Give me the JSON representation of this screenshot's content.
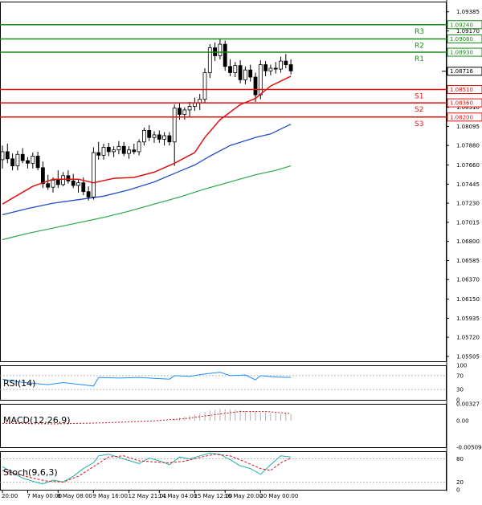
{
  "chart_data": {
    "type": "candlestick",
    "symbol": "EURUSD",
    "timeframe": "H4",
    "main": {
      "ylim": [
        1.0545,
        1.095
      ],
      "price_ticks": [
        "1.09385",
        "1.09170",
        "1.08955",
        "1.08740",
        "1.08525",
        "1.08310",
        "1.08095",
        "1.07880",
        "1.07660",
        "1.07445",
        "1.07230",
        "1.07015",
        "1.06800",
        "1.06585",
        "1.06370",
        "1.06150",
        "1.05935",
        "1.05720",
        "1.05505"
      ],
      "current_price": "1.08716",
      "levels": [
        {
          "name": "R3",
          "value": 1.0924,
          "label": "1.09240",
          "color": "#1a8a1a"
        },
        {
          "name": "R2",
          "value": 1.0908,
          "label": "1.09080",
          "color": "#1a8a1a"
        },
        {
          "name": "R1",
          "value": 1.0893,
          "label": "1.08930",
          "color": "#1a8a1a"
        },
        {
          "name": "S1",
          "value": 1.0851,
          "label": "1.08510",
          "color": "#e01010"
        },
        {
          "name": "S2",
          "value": 1.0836,
          "label": "1.08360",
          "color": "#e01010"
        },
        {
          "name": "S3",
          "value": 1.082,
          "label": "1.08200",
          "color": "#e01010"
        }
      ],
      "candles": [
        [
          1.0772,
          1.0788,
          1.0762,
          1.0781
        ],
        [
          1.0781,
          1.079,
          1.0768,
          1.0773
        ],
        [
          1.0773,
          1.0779,
          1.076,
          1.0765
        ],
        [
          1.0765,
          1.0782,
          1.076,
          1.0778
        ],
        [
          1.0778,
          1.0785,
          1.0768,
          1.0771
        ],
        [
          1.0771,
          1.0775,
          1.0762,
          1.0768
        ],
        [
          1.0768,
          1.078,
          1.0762,
          1.0776
        ],
        [
          1.0776,
          1.0781,
          1.076,
          1.0763
        ],
        [
          1.0763,
          1.077,
          1.074,
          1.0745
        ],
        [
          1.0745,
          1.0755,
          1.0738,
          1.0741
        ],
        [
          1.0741,
          1.0752,
          1.0735,
          1.0749
        ],
        [
          1.0749,
          1.076,
          1.074,
          1.0744
        ],
        [
          1.0744,
          1.0758,
          1.0742,
          1.0754
        ],
        [
          1.0754,
          1.076,
          1.0745,
          1.0748
        ],
        [
          1.0748,
          1.0756,
          1.074,
          1.0743
        ],
        [
          1.0743,
          1.075,
          1.0735,
          1.0746
        ],
        [
          1.0746,
          1.0752,
          1.0732,
          1.0736
        ],
        [
          1.0736,
          1.0742,
          1.0726,
          1.073
        ],
        [
          1.073,
          1.0786,
          1.0727,
          1.078
        ],
        [
          1.078,
          1.0792,
          1.0772,
          1.0777
        ],
        [
          1.0777,
          1.079,
          1.0772,
          1.0786
        ],
        [
          1.0786,
          1.0791,
          1.0776,
          1.0781
        ],
        [
          1.0781,
          1.0787,
          1.0775,
          1.0783
        ],
        [
          1.0783,
          1.0793,
          1.0778,
          1.0787
        ],
        [
          1.0787,
          1.0792,
          1.0776,
          1.0779
        ],
        [
          1.0779,
          1.0787,
          1.0773,
          1.0783
        ],
        [
          1.0783,
          1.079,
          1.0778,
          1.0781
        ],
        [
          1.0781,
          1.0795,
          1.0777,
          1.0792
        ],
        [
          1.0792,
          1.0808,
          1.0788,
          1.0805
        ],
        [
          1.0805,
          1.0811,
          1.0793,
          1.0797
        ],
        [
          1.0797,
          1.0804,
          1.0791,
          1.08
        ],
        [
          1.08,
          1.0805,
          1.0791,
          1.0795
        ],
        [
          1.0795,
          1.0803,
          1.0788,
          1.0799
        ],
        [
          1.0799,
          1.0803,
          1.0788,
          1.0792
        ],
        [
          1.0792,
          1.0834,
          1.0765,
          1.083
        ],
        [
          1.083,
          1.0836,
          1.0817,
          1.0823
        ],
        [
          1.0823,
          1.0831,
          1.0817,
          1.0828
        ],
        [
          1.0828,
          1.0837,
          1.082,
          1.0832
        ],
        [
          1.0832,
          1.0842,
          1.0827,
          1.0836
        ],
        [
          1.0836,
          1.0846,
          1.0828,
          1.084
        ],
        [
          1.084,
          1.0875,
          1.0836,
          1.087
        ],
        [
          1.087,
          1.0902,
          1.0864,
          1.0898
        ],
        [
          1.0898,
          1.0904,
          1.0883,
          1.0889
        ],
        [
          1.0889,
          1.0908,
          1.0885,
          1.0902
        ],
        [
          1.0902,
          1.0906,
          1.0872,
          1.0877
        ],
        [
          1.0877,
          1.0885,
          1.0866,
          1.087
        ],
        [
          1.087,
          1.0882,
          1.0865,
          1.0878
        ],
        [
          1.0878,
          1.0884,
          1.0858,
          1.0862
        ],
        [
          1.0862,
          1.0877,
          1.0857,
          1.0873
        ],
        [
          1.0873,
          1.0879,
          1.086,
          1.0865
        ],
        [
          1.0865,
          1.087,
          1.0837,
          1.0845
        ],
        [
          1.0845,
          1.0884,
          1.084,
          1.0879
        ],
        [
          1.0879,
          1.0883,
          1.0866,
          1.0872
        ],
        [
          1.0872,
          1.0879,
          1.0867,
          1.0875
        ],
        [
          1.0875,
          1.0882,
          1.0869,
          1.0874
        ],
        [
          1.0874,
          1.0888,
          1.087,
          1.0883
        ],
        [
          1.0883,
          1.0891,
          1.0875,
          1.0879
        ],
        [
          1.0879,
          1.0885,
          1.0868,
          1.0872
        ]
      ],
      "ma_red": [
        [
          0,
          1.0722
        ],
        [
          6,
          1.0742
        ],
        [
          10,
          1.075
        ],
        [
          15,
          1.075
        ],
        [
          18,
          1.0746
        ],
        [
          22,
          1.0751
        ],
        [
          26,
          1.0752
        ],
        [
          30,
          1.0758
        ],
        [
          34,
          1.0768
        ],
        [
          38,
          1.078
        ],
        [
          40,
          1.0797
        ],
        [
          43,
          1.0817
        ],
        [
          47,
          1.0834
        ],
        [
          50,
          1.0841
        ],
        [
          53,
          1.0855
        ],
        [
          57,
          1.0866
        ]
      ],
      "ma_blue": [
        [
          0,
          1.071
        ],
        [
          5,
          1.0717
        ],
        [
          10,
          1.0723
        ],
        [
          15,
          1.0727
        ],
        [
          20,
          1.0731
        ],
        [
          25,
          1.0738
        ],
        [
          30,
          1.0747
        ],
        [
          35,
          1.0759
        ],
        [
          38,
          1.0766
        ],
        [
          41,
          1.0776
        ],
        [
          45,
          1.0788
        ],
        [
          50,
          1.0797
        ],
        [
          53,
          1.0801
        ],
        [
          57,
          1.0812
        ]
      ],
      "ma_green": [
        [
          0,
          1.0682
        ],
        [
          5,
          1.0689
        ],
        [
          10,
          1.0695
        ],
        [
          15,
          1.0701
        ],
        [
          20,
          1.0707
        ],
        [
          25,
          1.0714
        ],
        [
          30,
          1.0722
        ],
        [
          35,
          1.073
        ],
        [
          40,
          1.0739
        ],
        [
          45,
          1.0747
        ],
        [
          50,
          1.0755
        ],
        [
          54,
          1.076
        ],
        [
          57,
          1.0765
        ]
      ]
    },
    "rsi": {
      "label": "RSI(14)",
      "ticks": [
        "100",
        "70",
        "30",
        "0"
      ],
      "ylim": [
        0,
        100
      ],
      "values": [
        [
          0,
          60
        ],
        [
          3,
          52
        ],
        [
          6,
          48
        ],
        [
          9,
          44
        ],
        [
          12,
          50
        ],
        [
          15,
          45
        ],
        [
          18,
          40
        ],
        [
          19,
          65
        ],
        [
          23,
          63
        ],
        [
          27,
          65
        ],
        [
          30,
          62
        ],
        [
          33,
          60
        ],
        [
          34,
          70
        ],
        [
          37,
          68
        ],
        [
          40,
          75
        ],
        [
          43,
          80
        ],
        [
          45,
          70
        ],
        [
          48,
          72
        ],
        [
          50,
          58
        ],
        [
          51,
          70
        ],
        [
          54,
          66
        ],
        [
          57,
          65
        ]
      ]
    },
    "macd": {
      "label": "MACD(12,26,9)",
      "ticks": [
        "0.00327",
        "0.00",
        "-0.005094"
      ],
      "ylim": [
        -0.005094,
        0.00327
      ],
      "histogram_x_start": 34,
      "histogram": [
        0.0004,
        0.0006,
        0.0008,
        0.001,
        0.0012,
        0.0014,
        0.0017,
        0.002,
        0.0021,
        0.0022,
        0.0022,
        0.0022,
        0.0021,
        0.002,
        0.0019,
        0.0018,
        0.0017,
        0.0016,
        0.0016,
        0.0015,
        0.0015,
        0.0014,
        0.0014,
        0.0013
      ],
      "signal": [
        [
          0,
          -0.0005
        ],
        [
          10,
          -0.0006
        ],
        [
          20,
          -0.0004
        ],
        [
          30,
          0.0
        ],
        [
          36,
          0.0004
        ],
        [
          42,
          0.0012
        ],
        [
          47,
          0.0018
        ],
        [
          52,
          0.0018
        ],
        [
          57,
          0.0014
        ]
      ]
    },
    "stoch": {
      "label": "Stoch(9,6,3)",
      "ticks": [
        "80",
        "20",
        "0"
      ],
      "ylim": [
        0,
        100
      ],
      "main": [
        [
          0,
          60
        ],
        [
          2,
          45
        ],
        [
          4,
          30
        ],
        [
          6,
          22
        ],
        [
          8,
          15
        ],
        [
          10,
          25
        ],
        [
          12,
          20
        ],
        [
          14,
          35
        ],
        [
          16,
          55
        ],
        [
          18,
          70
        ],
        [
          19,
          88
        ],
        [
          21,
          92
        ],
        [
          24,
          80
        ],
        [
          27,
          68
        ],
        [
          29,
          82
        ],
        [
          31,
          75
        ],
        [
          33,
          65
        ],
        [
          35,
          85
        ],
        [
          37,
          80
        ],
        [
          39,
          88
        ],
        [
          41,
          95
        ],
        [
          43,
          92
        ],
        [
          45,
          78
        ],
        [
          47,
          62
        ],
        [
          49,
          55
        ],
        [
          51,
          40
        ],
        [
          53,
          65
        ],
        [
          55,
          88
        ],
        [
          57,
          85
        ]
      ],
      "signal": [
        [
          0,
          50
        ],
        [
          3,
          40
        ],
        [
          6,
          30
        ],
        [
          9,
          22
        ],
        [
          12,
          20
        ],
        [
          15,
          35
        ],
        [
          18,
          60
        ],
        [
          21,
          85
        ],
        [
          24,
          88
        ],
        [
          27,
          75
        ],
        [
          30,
          72
        ],
        [
          33,
          70
        ],
        [
          36,
          74
        ],
        [
          39,
          84
        ],
        [
          42,
          92
        ],
        [
          45,
          88
        ],
        [
          48,
          72
        ],
        [
          51,
          55
        ],
        [
          53,
          50
        ],
        [
          55,
          70
        ],
        [
          57,
          82
        ]
      ]
    },
    "x_labels": [
      {
        "i": 0,
        "text": "20:00"
      },
      {
        "i": 5,
        "text": "7 May 00:00"
      },
      {
        "i": 11,
        "text": "8 May 08:00"
      },
      {
        "i": 18,
        "text": "9 May 16:00"
      },
      {
        "i": 25,
        "text": "12 May 21:01"
      },
      {
        "i": 31,
        "text": "14 May 04:00"
      },
      {
        "i": 38,
        "text": "15 May 12:00"
      },
      {
        "i": 44,
        "text": "16 May 20:00"
      },
      {
        "i": 51,
        "text": "20 May 00:00"
      }
    ]
  }
}
